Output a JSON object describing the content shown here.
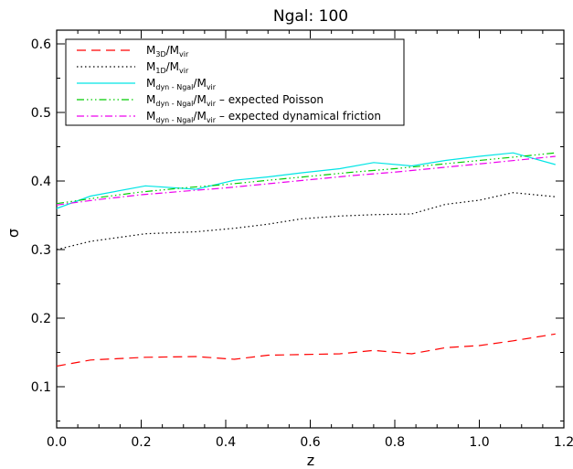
{
  "chart_data": {
    "type": "line",
    "title": "Ngal: 100",
    "xlabel": "z",
    "ylabel": "σ",
    "xlim": [
      0.0,
      1.2
    ],
    "ylim": [
      0.04,
      0.62
    ],
    "xticks": [
      0.0,
      0.2,
      0.4,
      0.6,
      0.8,
      1.0,
      1.2
    ],
    "xtick_labels": [
      "0.0",
      "0.2",
      "0.4",
      "0.6",
      "0.8",
      "1.0",
      "1.2"
    ],
    "yticks": [
      0.1,
      0.2,
      0.3,
      0.4,
      0.5,
      0.6
    ],
    "ytick_labels": [
      "0.1",
      "0.2",
      "0.3",
      "0.4",
      "0.5",
      "0.6"
    ],
    "grid": false,
    "legend_position": "top-left",
    "series": [
      {
        "name": "M3D/Mvir",
        "legend_parts": [
          [
            "M",
            ""
          ],
          [
            "3D",
            "sub"
          ],
          [
            "/M",
            ""
          ],
          [
            "vir",
            "sub"
          ]
        ],
        "color": "#ff0000",
        "dash": "10,6",
        "x": [
          0.0,
          0.08,
          0.21,
          0.33,
          0.42,
          0.5,
          0.58,
          0.67,
          0.75,
          0.84,
          0.92,
          1.0,
          1.08,
          1.18
        ],
        "y": [
          0.13,
          0.139,
          0.143,
          0.144,
          0.14,
          0.146,
          0.147,
          0.148,
          0.153,
          0.148,
          0.157,
          0.16,
          0.167,
          0.177
        ]
      },
      {
        "name": "M1D/Mvir",
        "legend_parts": [
          [
            "M",
            ""
          ],
          [
            "1D",
            "sub"
          ],
          [
            "/M",
            ""
          ],
          [
            "vir",
            "sub"
          ]
        ],
        "color": "#000000",
        "dash": "1.5,3",
        "x": [
          0.0,
          0.08,
          0.21,
          0.33,
          0.42,
          0.5,
          0.58,
          0.67,
          0.75,
          0.84,
          0.92,
          1.0,
          1.08,
          1.18
        ],
        "y": [
          0.3,
          0.312,
          0.323,
          0.326,
          0.331,
          0.337,
          0.345,
          0.349,
          0.351,
          0.352,
          0.366,
          0.372,
          0.383,
          0.377
        ]
      },
      {
        "name": "Mdyn - Ngal/Mvir",
        "legend_parts": [
          [
            "M",
            ""
          ],
          [
            "dyn - Ngal",
            "sub"
          ],
          [
            "/M",
            ""
          ],
          [
            "vir",
            "sub"
          ]
        ],
        "color": "#00e5e5",
        "dash": "",
        "x": [
          0.0,
          0.08,
          0.21,
          0.33,
          0.42,
          0.5,
          0.58,
          0.67,
          0.75,
          0.84,
          0.92,
          1.0,
          1.08,
          1.18
        ],
        "y": [
          0.36,
          0.378,
          0.393,
          0.388,
          0.401,
          0.406,
          0.412,
          0.418,
          0.427,
          0.422,
          0.43,
          0.436,
          0.441,
          0.424
        ]
      },
      {
        "name": "Mdyn - Ngal/Mvir - expected Poisson",
        "legend_parts": [
          [
            "M",
            ""
          ],
          [
            "dyn - Ngal",
            "sub"
          ],
          [
            "/M",
            ""
          ],
          [
            "vir",
            "sub"
          ],
          [
            " – expected Poisson",
            ""
          ]
        ],
        "color": "#00cc00",
        "dash": "8,3,1.5,3,1.5,3,1.5,3",
        "x": [
          0.0,
          0.1,
          0.2,
          0.3,
          0.4,
          0.5,
          0.6,
          0.7,
          0.8,
          0.9,
          1.0,
          1.1,
          1.18
        ],
        "y": [
          0.367,
          0.376,
          0.384,
          0.39,
          0.395,
          0.401,
          0.407,
          0.413,
          0.418,
          0.424,
          0.43,
          0.436,
          0.441
        ]
      },
      {
        "name": "Mdyn - Ngal/Mvir - expected dynamical friction",
        "legend_parts": [
          [
            "M",
            ""
          ],
          [
            "dyn - Ngal",
            "sub"
          ],
          [
            "/M",
            ""
          ],
          [
            "vir",
            "sub"
          ],
          [
            " – expected dynamical friction",
            ""
          ]
        ],
        "color": "#ee00ee",
        "dash": "8,3,1.5,3",
        "x": [
          0.0,
          0.1,
          0.2,
          0.3,
          0.4,
          0.5,
          0.6,
          0.7,
          0.8,
          0.9,
          1.0,
          1.1,
          1.18
        ],
        "y": [
          0.365,
          0.373,
          0.38,
          0.385,
          0.39,
          0.396,
          0.402,
          0.408,
          0.413,
          0.419,
          0.425,
          0.431,
          0.436
        ]
      }
    ]
  }
}
